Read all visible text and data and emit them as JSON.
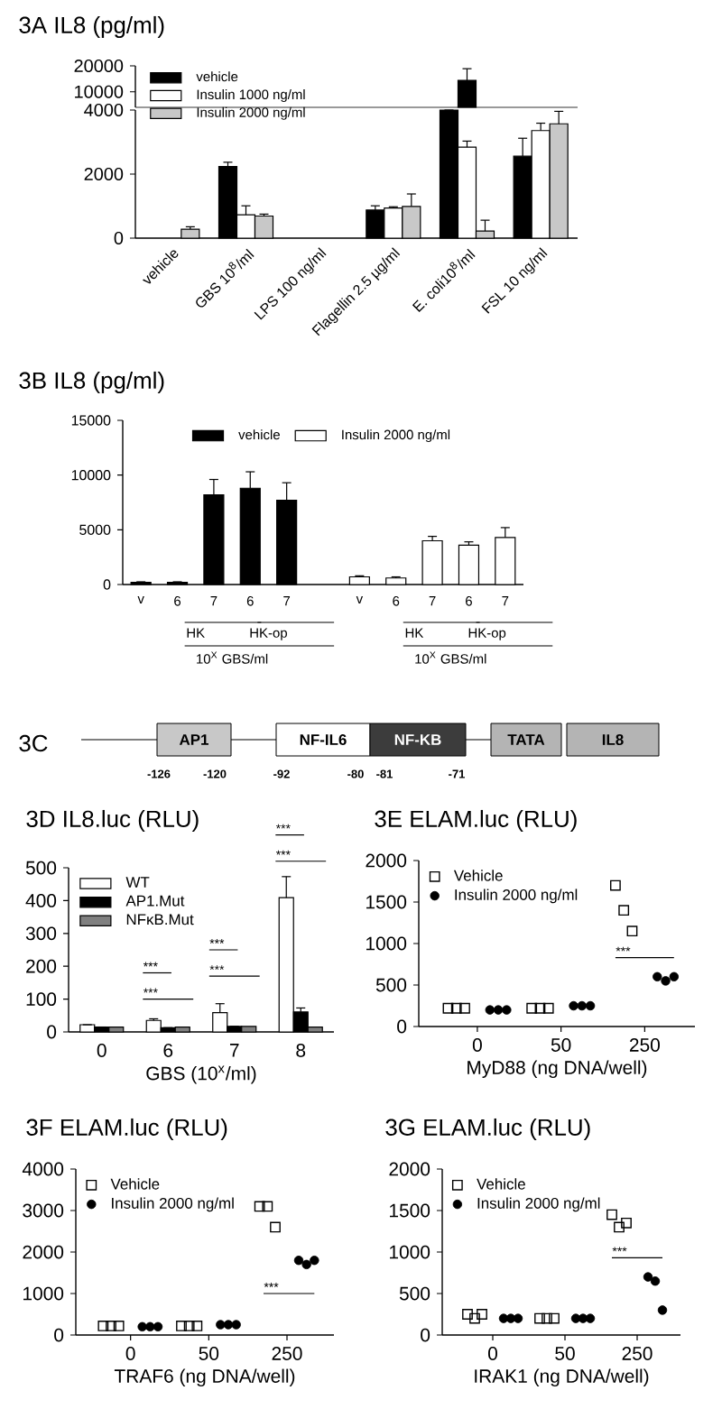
{
  "chart_data": [
    {
      "type": "bar",
      "title": "3A IL8 (pg/ml)",
      "tick_labels": "y",
      "categories": [
        null,
        null,
        null,
        null,
        null,
        null
      ],
      "series": [
        {
          "color": "#000000",
          "base": [
            null,
            null,
            null,
            null,
            4000,
            null
          ],
          "values": [
            null,
            null,
            null,
            null,
            10400,
            null
          ],
          "errors": [
            null,
            null,
            null,
            null,
            4500,
            null
          ]
        }
      ],
      "ylim": [
        4000,
        20000
      ],
      "yticks": [
        10000,
        20000
      ]
    },
    {
      "type": "bar",
      "categories": [
        "vehicle",
        "GBS 10$^{8}$/ml",
        "LPS 100 ng/ml",
        "Flagellin 2.5 µg/ml",
        "E. coli10$^{8}$/ml",
        "FSL 10 ng/ml"
      ],
      "series": [
        {
          "name": "vehicle",
          "color": "#000000",
          "values": [
            null,
            2240,
            null,
            880,
            4000,
            2560
          ],
          "errors": [
            null,
            130,
            null,
            130,
            null,
            560
          ]
        },
        {
          "name": "Insulin 1000 ng/ml",
          "color": "#ffffff",
          "values": [
            null,
            730,
            null,
            940,
            2840,
            3360
          ],
          "errors": [
            null,
            280,
            null,
            40,
            190,
            230
          ]
        },
        {
          "name": "Insulin 2000 ng/ml",
          "color": "#c8c8c8",
          "values": [
            280,
            690,
            null,
            990,
            220,
            3570
          ],
          "errors": [
            75,
            60,
            null,
            390,
            340,
            390
          ]
        }
      ],
      "ylim": [
        0,
        4000
      ],
      "yticks": [
        0,
        2000,
        4000
      ],
      "legend": "top left"
    },
    {
      "type": "bar",
      "title": "3B IL8 (pg/ml)",
      "categories": [
        "v",
        "6",
        "7",
        "6",
        "7",
        null,
        "v",
        "6",
        "7",
        "6",
        "7"
      ],
      "series": [
        {
          "name": "vehicle",
          "color": "#000000",
          "values": [
            200,
            200,
            8200,
            8800,
            7700,
            null,
            null,
            null,
            null,
            null,
            null
          ],
          "errors": [
            50,
            50,
            1400,
            1500,
            1600,
            null,
            null,
            null,
            null,
            null,
            null
          ]
        },
        {
          "name": "Insulin 2000 ng/ml",
          "color": "#ffffff",
          "values": [
            null,
            null,
            null,
            null,
            null,
            null,
            700,
            600,
            4000,
            3600,
            4300
          ],
          "errors": [
            null,
            null,
            null,
            null,
            null,
            null,
            100,
            100,
            400,
            300,
            900
          ]
        }
      ],
      "ylim": [
        0,
        15000
      ],
      "yticks": [
        0,
        5000,
        10000,
        15000
      ],
      "legend": "top",
      "annotations": [
        "HK",
        "HK-op",
        "10$^{X}$ GBS/ml",
        "HK",
        "HK-op",
        "10$^{X}$ GBS/ml"
      ]
    },
    {
      "type": "other",
      "title": "3C",
      "categories": [
        "AP1",
        "NF-IL6",
        "NF-KB",
        "TATA",
        "IL8"
      ],
      "colors": [
        "#c8c8c8",
        "#ffffff",
        "#3c3c3c",
        "#b4b4b4",
        "#b4b4b4"
      ],
      "annotations": [
        "-126",
        "-120",
        "-92",
        "-80",
        "-81",
        "-71"
      ]
    },
    {
      "type": "bar",
      "title": "3D IL8.luc (RLU)",
      "xlabel": "GBS (10$^{x}$/ml)",
      "categories": [
        "0",
        "6",
        "7",
        "8"
      ],
      "series": [
        {
          "name": "WT",
          "color": "#ffffff",
          "values": [
            22,
            35,
            59,
            409
          ],
          "errors": [
            null,
            5,
            27,
            64
          ]
        },
        {
          "name": "AP1.Mut",
          "color": "#000000",
          "values": [
            15,
            13,
            17,
            61
          ],
          "errors": [
            null,
            null,
            null,
            12
          ]
        },
        {
          "name": "NFκB.Mut",
          "color": "#808080",
          "values": [
            15,
            15,
            17,
            15
          ]
        }
      ],
      "ylim": [
        0,
        500
      ],
      "yticks": [
        0,
        100,
        200,
        300,
        400,
        500
      ],
      "legend": "top left",
      "annotations": [
        "***",
        "***",
        "***",
        "***",
        "***",
        "***"
      ]
    },
    {
      "type": "scatter",
      "title": "3E ELAM.luc (RLU)",
      "xlabel": "MyD88 (ng DNA/well)",
      "categories": [
        "0",
        "50",
        "250"
      ],
      "series": [
        {
          "name": "Vehicle",
          "color": "#000000",
          "marker": "square",
          "x": [
            "0",
            "0",
            "0",
            "50",
            "50",
            "50",
            "250",
            "250",
            "250"
          ],
          "values": [
            220,
            220,
            220,
            220,
            220,
            220,
            1700,
            1400,
            1150
          ]
        },
        {
          "name": "Insulin 2000 ng/ml",
          "color": "#000000",
          "marker": "circle",
          "x": [
            "0",
            "0",
            "0",
            "50",
            "50",
            "50",
            "250",
            "250",
            "250"
          ],
          "values": [
            200,
            200,
            200,
            250,
            250,
            250,
            600,
            550,
            600
          ]
        }
      ],
      "ylim": [
        0,
        2000
      ],
      "yticks": [
        0,
        500,
        1000,
        1500,
        2000
      ],
      "legend": "top left",
      "annotations": [
        "***"
      ]
    },
    {
      "type": "scatter",
      "title": "3F ELAM.luc (RLU)",
      "xlabel": "TRAF6 (ng DNA/well)",
      "categories": [
        "0",
        "50",
        "250"
      ],
      "series": [
        {
          "name": "Vehicle",
          "color": "#000000",
          "marker": "square",
          "x": [
            "0",
            "0",
            "0",
            "50",
            "50",
            "50",
            "250",
            "250",
            "250"
          ],
          "values": [
            220,
            220,
            220,
            220,
            220,
            220,
            3100,
            3100,
            2600
          ]
        },
        {
          "name": "Insulin 2000 ng/ml",
          "color": "#000000",
          "marker": "circle",
          "x": [
            "0",
            "0",
            "0",
            "50",
            "50",
            "50",
            "250",
            "250",
            "250"
          ],
          "values": [
            200,
            200,
            200,
            250,
            250,
            250,
            1800,
            1700,
            1800
          ]
        }
      ],
      "ylim": [
        0,
        4000
      ],
      "yticks": [
        0,
        1000,
        2000,
        3000,
        4000
      ],
      "legend": "top left",
      "annotations": [
        "***"
      ]
    },
    {
      "type": "scatter",
      "title": "3G ELAM.luc (RLU)",
      "xlabel": "IRAK1 (ng DNA/well)",
      "categories": [
        "0",
        "50",
        "250"
      ],
      "series": [
        {
          "name": "Vehicle",
          "color": "#000000",
          "marker": "square",
          "x": [
            "0",
            "0",
            "0",
            "50",
            "50",
            "50",
            "250",
            "250",
            "250"
          ],
          "values": [
            250,
            200,
            250,
            200,
            200,
            200,
            1450,
            1300,
            1350
          ]
        },
        {
          "name": "Insulin 2000 ng/ml",
          "color": "#000000",
          "marker": "circle",
          "x": [
            "0",
            "0",
            "0",
            "50",
            "50",
            "50",
            "250",
            "250",
            "250"
          ],
          "values": [
            200,
            200,
            200,
            200,
            200,
            200,
            700,
            650,
            300
          ]
        }
      ],
      "ylim": [
        0,
        2000
      ],
      "yticks": [
        0,
        500,
        1000,
        1500,
        2000
      ],
      "legend": "top left",
      "annotations": [
        "***"
      ]
    }
  ]
}
